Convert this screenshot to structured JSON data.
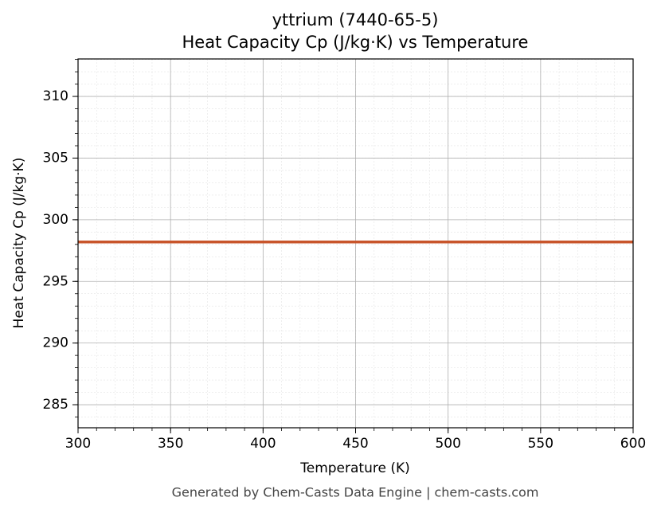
{
  "chart_data": {
    "type": "line",
    "title": "yttrium (7440-65-5)",
    "subtitle": "Heat Capacity Cp (J/kg·K) vs Temperature",
    "x_label": "Temperature (K)",
    "y_label": "Heat Capacity Cp (J/kg·K)",
    "footer": "Generated by Chem-Casts Data Engine | chem-casts.com",
    "x": [
      300,
      600
    ],
    "series": [
      {
        "name": "Cp",
        "color": "#c8552b",
        "values": [
          298.2,
          298.2
        ]
      }
    ],
    "xlim": [
      300,
      600
    ],
    "xticks": [
      300,
      350,
      400,
      450,
      500,
      550,
      600
    ],
    "ylim": [
      283.13,
      313.04
    ],
    "yticks": [
      285,
      290,
      295,
      300,
      305,
      310
    ],
    "grid": true
  }
}
